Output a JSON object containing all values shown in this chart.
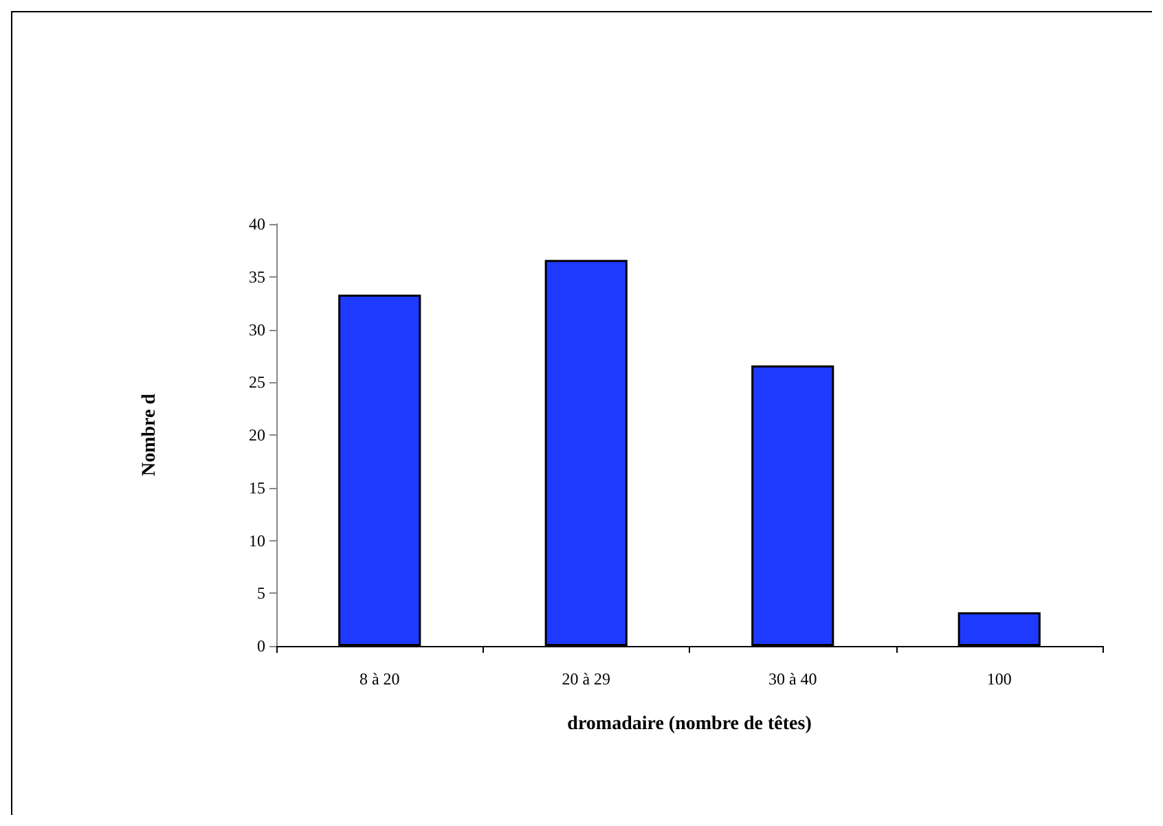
{
  "chart_data": {
    "type": "bar",
    "xlabel": "dromadaire (nombre de têtes)",
    "ylabel": "Nombre d",
    "categories": [
      "8 à 20",
      "20 à 29",
      "30 à 40",
      "100"
    ],
    "values": [
      33.3,
      36.6,
      26.6,
      3.2
    ],
    "color": "#1f3aff",
    "ylim": [
      0,
      40
    ],
    "yticks": [
      0,
      5,
      10,
      15,
      20,
      25,
      30,
      35,
      40
    ],
    "grid": false
  }
}
